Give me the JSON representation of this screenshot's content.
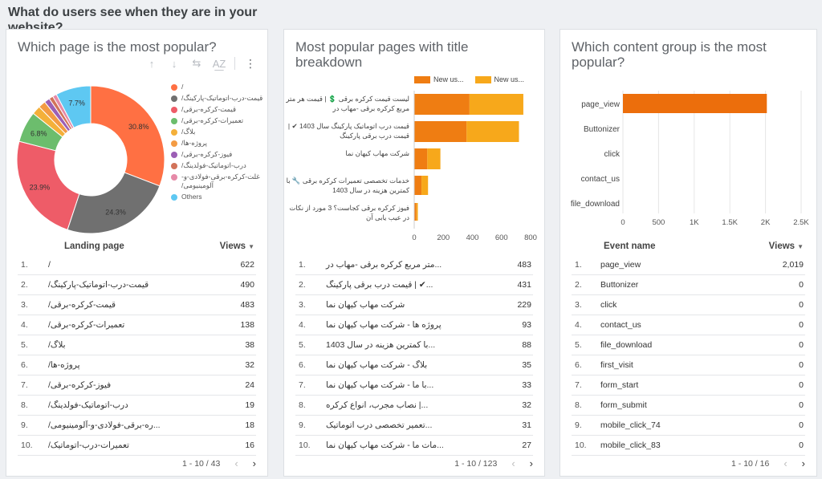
{
  "page": {
    "heading": "What do users see when they are in your website?"
  },
  "colors": {
    "orange": "#ef7d12",
    "amber": "#f7a81b",
    "accent_bar": "#ec6e0c"
  },
  "card1": {
    "title": "Which page is the most popular?",
    "toolbar": {
      "up_icon": "↑",
      "down_icon": "↓",
      "chart_icon": "⇆",
      "az_icon": "A͟Z",
      "more_icon": "⋮"
    },
    "legend": [
      {
        "label": "/",
        "color": "#ff7043"
      },
      {
        "label": "قیمت-درب-اتوماتیک-پارکینگ/",
        "color": "#707070"
      },
      {
        "label": "قیمت-کرکره-برقی/",
        "color": "#ee5c68"
      },
      {
        "label": "تعمیرات-کرکره-برقی/",
        "color": "#6cbd6d"
      },
      {
        "label": "بلاگ/",
        "color": "#f4b03a"
      },
      {
        "label": "پروژه-ها/",
        "color": "#f39b44"
      },
      {
        "label": "فیوز-کرکره-برقی/",
        "color": "#9c5fb5"
      },
      {
        "label": "درب-اتوماتیک-فولدینگ/",
        "color": "#d2735a"
      },
      {
        "label": "غلت-کرکره-برقی-فولادی-و-آلومینیومی/",
        "color": "#e68aa8"
      },
      {
        "label": "Others",
        "color": "#5ec8f2"
      }
    ],
    "table": {
      "col_label": "Landing page",
      "col_value": "Views",
      "rows": [
        {
          "n": "1.",
          "label": "/",
          "value": "622"
        },
        {
          "n": "2.",
          "label": "قیمت-درب-اتوماتیک-پارکینگ/",
          "value": "490"
        },
        {
          "n": "3.",
          "label": "قیمت-کرکره-برقی/",
          "value": "483"
        },
        {
          "n": "4.",
          "label": "تعمیرات-کرکره-برقی/",
          "value": "138"
        },
        {
          "n": "5.",
          "label": "بلاگ/",
          "value": "38"
        },
        {
          "n": "6.",
          "label": "پروژه-ها/",
          "value": "32"
        },
        {
          "n": "7.",
          "label": "فیوز-کرکره-برقی/",
          "value": "24"
        },
        {
          "n": "8.",
          "label": "درب-اتوماتیک-فولدینگ/",
          "value": "19"
        },
        {
          "n": "9.",
          "label": "...ره-برقی-فولادی-و-آلومینیومی/",
          "value": "18"
        },
        {
          "n": "10.",
          "label": "تعمیرات-درب-اتوماتیک/",
          "value": "16"
        }
      ],
      "pager": "1 - 10 / 43"
    }
  },
  "card2": {
    "title": "Most popular pages with title breakdown",
    "table": {
      "rows": [
        {
          "n": "1.",
          "label": "...متر مربع کرکره برقی -مهاب در",
          "value": "483"
        },
        {
          "n": "2.",
          "label": "...✔ | قیمت درب برقی پارکینگ",
          "value": "431"
        },
        {
          "n": "3.",
          "label": "شرکت مهاب کیهان نما",
          "value": "229"
        },
        {
          "n": "4.",
          "label": "پروژه ها - شرکت مهاب کیهان نما",
          "value": "93"
        },
        {
          "n": "5.",
          "label": "...با کمترین هزینه در سال 1403",
          "value": "88"
        },
        {
          "n": "6.",
          "label": "بلاگ - شرکت مهاب کیهان نما",
          "value": "35"
        },
        {
          "n": "7.",
          "label": "...با ما - شرکت مهاب کیهان نما",
          "value": "33"
        },
        {
          "n": "8.",
          "label": "...| نصاب مجرب، انواع کرکره",
          "value": "32"
        },
        {
          "n": "9.",
          "label": "...تعمیر تخصصی درب اتوماتیک",
          "value": "31"
        },
        {
          "n": "10.",
          "label": "...مات ما - شرکت مهاب کیهان نما",
          "value": "27"
        }
      ],
      "pager": "1 - 10 / 123"
    }
  },
  "card3": {
    "title": "Which content group is the most popular?",
    "table": {
      "col_label": "Event name",
      "col_value": "Views",
      "rows": [
        {
          "n": "1.",
          "label": "page_view",
          "value": "2,019"
        },
        {
          "n": "2.",
          "label": "Buttonizer",
          "value": "0"
        },
        {
          "n": "3.",
          "label": "click",
          "value": "0"
        },
        {
          "n": "4.",
          "label": "contact_us",
          "value": "0"
        },
        {
          "n": "5.",
          "label": "file_download",
          "value": "0"
        },
        {
          "n": "6.",
          "label": "first_visit",
          "value": "0"
        },
        {
          "n": "7.",
          "label": "form_start",
          "value": "0"
        },
        {
          "n": "8.",
          "label": "form_submit",
          "value": "0"
        },
        {
          "n": "9.",
          "label": "mobile_click_74",
          "value": "0"
        },
        {
          "n": "10.",
          "label": "mobile_click_83",
          "value": "0"
        }
      ],
      "pager": "1 - 10 / 16"
    }
  },
  "pager_prev": "‹",
  "pager_next": "›",
  "chart_data": [
    {
      "type": "pie",
      "title": "Which page is the most popular?",
      "donut": true,
      "categories": [
        "/",
        "قیمت-درب-اتوماتیک-پارکینگ/",
        "قیمت-کرکره-برقی/",
        "تعمیرات-کرکره-برقی/",
        "بلاگ/",
        "پروژه-ها/",
        "فیوز-کرکره-برقی/",
        "درب-اتوماتیک-فولدینگ/",
        "غلت-کرکره-برقی-فولادی-و-آلومینیومی/",
        "Others"
      ],
      "values": [
        30.8,
        24.3,
        23.9,
        6.8,
        1.9,
        1.6,
        1.2,
        0.9,
        0.9,
        7.7
      ],
      "data_labels": [
        "30.8%",
        "24.3%",
        "23.9%",
        "6.8%",
        "",
        "",
        "",
        "",
        "",
        "7.7%"
      ]
    },
    {
      "type": "bar",
      "orientation": "horizontal",
      "stacked": true,
      "title": "Most popular pages with title breakdown",
      "categories": [
        "لیست قیمت کرکره برقی 💲 | قیمت هر متر مربع کرکره برقی -مهاب در",
        "قیمت درب اتوماتیک پارکینگ سال 1403 ✔ | قیمت درب برقی پارکینگ",
        "شرکت مهاب کیهان نما",
        "خدمات تخصصی تعمیرات کرکره برقی 🔧 با کمترین هزینه در سال 1403",
        "فیوز کرکره برقی کجاست؟ 3 مورد از نکات در عیب یابی آن"
      ],
      "series": [
        {
          "name": "New us...",
          "values": [
            380,
            360,
            90,
            50,
            15
          ]
        },
        {
          "name": "New us...",
          "values": [
            370,
            360,
            90,
            45,
            10
          ]
        }
      ],
      "xlim": [
        0,
        800
      ],
      "xticks": [
        "0",
        "200",
        "400",
        "600",
        "800"
      ]
    },
    {
      "type": "bar",
      "orientation": "horizontal",
      "title": "Which content group is the most popular?",
      "categories": [
        "page_view",
        "Buttonizer",
        "click",
        "contact_us",
        "file_download"
      ],
      "values": [
        2019,
        0,
        0,
        0,
        0
      ],
      "xlim": [
        0,
        2500
      ],
      "xticks": [
        "0",
        "500",
        "1K",
        "1.5K",
        "2K",
        "2.5K"
      ]
    }
  ]
}
